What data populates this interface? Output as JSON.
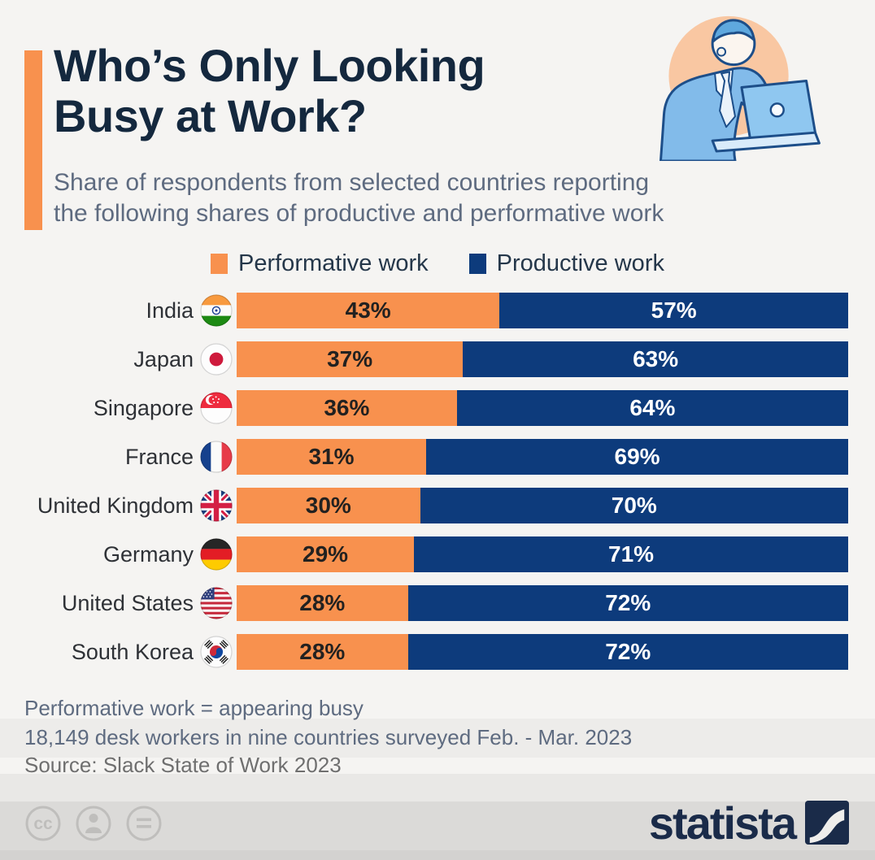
{
  "header": {
    "title_line1": "Who’s Only Looking",
    "title_line2": "Busy at Work?",
    "subtitle_line1": "Share of respondents from selected countries reporting",
    "subtitle_line2": "the following shares of productive and performative work"
  },
  "legend": [
    {
      "label": "Performative work",
      "color": "#F8914E"
    },
    {
      "label": "Productive work",
      "color": "#0D3B7C"
    }
  ],
  "colors": {
    "performative": "#F8914E",
    "productive": "#0D3B7C",
    "performative_label_text": "#222120",
    "productive_label_text": "#FFFFFF",
    "accent": "#F8914E",
    "title": "#14283E",
    "brand_navy": "#1A2B49"
  },
  "chart_data": {
    "type": "bar",
    "orientation": "horizontal-stacked",
    "title": "Who’s Only Looking Busy at Work?",
    "categories": [
      "India",
      "Japan",
      "Singapore",
      "France",
      "United Kingdom",
      "Germany",
      "United States",
      "South Korea"
    ],
    "flags": [
      "india",
      "japan",
      "singapore",
      "france",
      "united-kingdom",
      "germany",
      "united-states",
      "south-korea"
    ],
    "flag_icon_names": [
      "flag-india-icon",
      "flag-japan-icon",
      "flag-singapore-icon",
      "flag-france-icon",
      "flag-united-kingdom-icon",
      "flag-germany-icon",
      "flag-united-states-icon",
      "flag-south-korea-icon"
    ],
    "series": [
      {
        "name": "Performative work",
        "color": "#F8914E",
        "values": [
          43,
          37,
          36,
          31,
          30,
          29,
          28,
          28
        ]
      },
      {
        "name": "Productive work",
        "color": "#0D3B7C",
        "values": [
          57,
          63,
          64,
          69,
          70,
          71,
          72,
          72
        ]
      }
    ],
    "value_suffix": "%",
    "xlim": [
      0,
      100
    ],
    "legend_position": "top",
    "grid": false
  },
  "footnotes": {
    "definition": "Performative work = appearing busy",
    "survey": "18,149 desk workers in nine countries surveyed Feb. - Mar. 2023",
    "source": "Source: Slack State of Work 2023"
  },
  "footer": {
    "brand": "statista",
    "license_icons": [
      "cc-icon",
      "attribution-icon",
      "no-derivatives-icon"
    ]
  }
}
